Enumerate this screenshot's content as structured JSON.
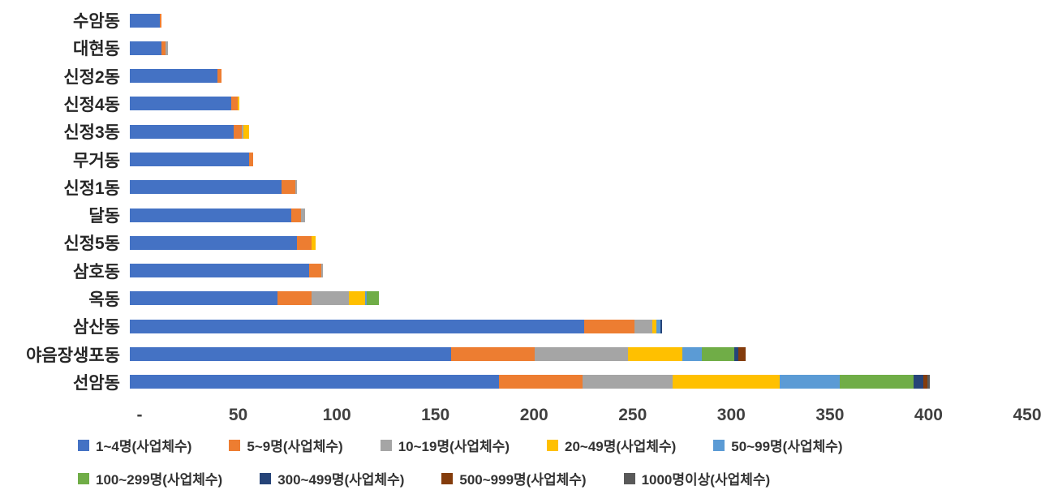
{
  "chart_data": {
    "type": "bar",
    "orientation": "horizontal",
    "stacked": true,
    "title": "",
    "xlabel": "",
    "ylabel": "",
    "xlim": [
      0,
      450
    ],
    "x_ticks": [
      "-",
      "50",
      "100",
      "150",
      "200",
      "250",
      "300",
      "350",
      "400",
      "450"
    ],
    "grid": false,
    "legend_position": "bottom",
    "background": "#FFFFFF",
    "categories": [
      "수암동",
      "대현동",
      "신정2동",
      "신정4동",
      "신정3동",
      "무거동",
      "신정1동",
      "달동",
      "신정5동",
      "삼호동",
      "옥동",
      "삼산동",
      "야음장생포동",
      "선암동"
    ],
    "series": [
      {
        "name": "1~4명(사업체수)",
        "color": "#4472C4",
        "values": [
          15,
          16,
          44,
          51,
          52,
          60,
          76,
          81,
          84,
          90,
          74,
          228,
          161,
          185
        ]
      },
      {
        "name": "5~9명(사업체수)",
        "color": "#ED7D31",
        "values": [
          1,
          2,
          2,
          3,
          4,
          2,
          7,
          5,
          7,
          6,
          17,
          25,
          42,
          42
        ]
      },
      {
        "name": "10~19명(사업체수)",
        "color": "#A5A5A5",
        "values": [
          0,
          1,
          0,
          0,
          1,
          0,
          1,
          2,
          0,
          1,
          19,
          9,
          47,
          45
        ]
      },
      {
        "name": "20~49명(사업체수)",
        "color": "#FFC000",
        "values": [
          0,
          0,
          0,
          1,
          3,
          0,
          0,
          0,
          2,
          0,
          8,
          2,
          27,
          54
        ]
      },
      {
        "name": "50~99명(사업체수)",
        "color": "#5B9BD5",
        "values": [
          0,
          0,
          0,
          0,
          0,
          0,
          0,
          0,
          0,
          0,
          1,
          2,
          10,
          30
        ]
      },
      {
        "name": "100~299명(사업체수)",
        "color": "#70AD47",
        "values": [
          0,
          0,
          0,
          0,
          0,
          0,
          0,
          0,
          0,
          0,
          6,
          0,
          16,
          37
        ]
      },
      {
        "name": "300~499명(사업체수)",
        "color": "#264478",
        "values": [
          0,
          0,
          0,
          0,
          0,
          0,
          0,
          0,
          0,
          0,
          0,
          1,
          2,
          5
        ]
      },
      {
        "name": "500~999명(사업체수)",
        "color": "#843C0C",
        "values": [
          0,
          0,
          0,
          0,
          0,
          0,
          0,
          0,
          0,
          0,
          0,
          0,
          4,
          2
        ]
      },
      {
        "name": "1000명이상(사업체수)",
        "color": "#595959",
        "values": [
          0,
          0,
          0,
          0,
          0,
          0,
          0,
          0,
          0,
          0,
          0,
          0,
          0,
          1
        ]
      }
    ]
  }
}
